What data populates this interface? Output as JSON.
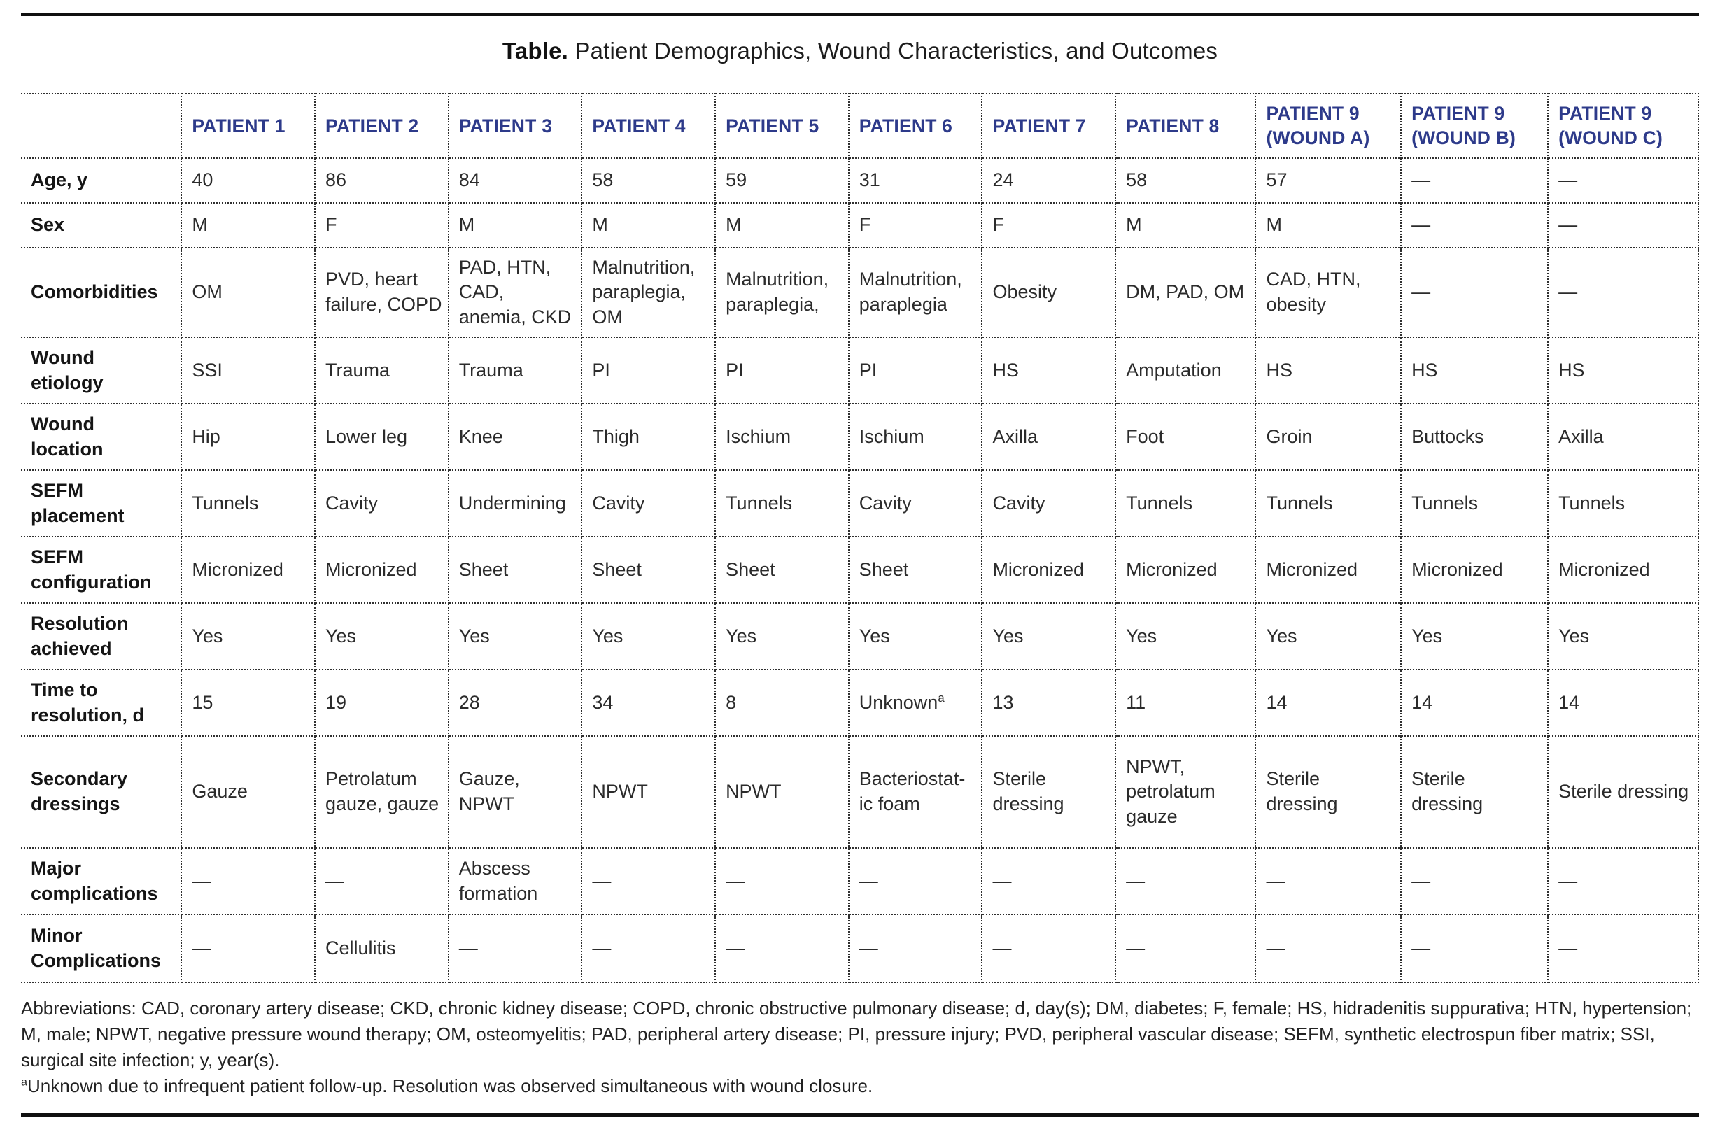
{
  "title": {
    "label": "Table.",
    "text": " Patient Demographics, Wound Characteristics, and Outcomes"
  },
  "table": {
    "header_color": "#2d3a8a",
    "body_text_color": "#2b2b2b",
    "column_headers": [
      "PATIENT 1",
      "PATIENT 2",
      "PATIENT 3",
      "PATIENT 4",
      "PATIENT 5",
      "PATIENT 6",
      "PATIENT 7",
      "PATIENT 8",
      "PATIENT 9\n(WOUND A)",
      "PATIENT 9\n(WOUND B)",
      "PATIENT 9\n(WOUND C)"
    ],
    "rows": [
      {
        "label": "Age, y",
        "values": [
          "40",
          "86",
          "84",
          "58",
          "59",
          "31",
          "24",
          "58",
          "57",
          "—",
          "—"
        ]
      },
      {
        "label": "Sex",
        "values": [
          "M",
          "F",
          "M",
          "M",
          "M",
          "F",
          "F",
          "M",
          "M",
          "—",
          "—"
        ]
      },
      {
        "label": "Comorbidities",
        "values": [
          "OM",
          "PVD, heart failure, COPD",
          "PAD, HTN, CAD, anemia, CKD",
          "Malnutrition, paraplegia, OM",
          "Malnutrition, paraplegia,",
          "Malnutrition, paraplegia",
          "Obesity",
          "DM, PAD, OM",
          "CAD, HTN, obesity",
          "—",
          "—"
        ]
      },
      {
        "label": "Wound\netiology",
        "values": [
          "SSI",
          "Trauma",
          "Trauma",
          "PI",
          "PI",
          "PI",
          "HS",
          "Amputation",
          "HS",
          "HS",
          "HS"
        ]
      },
      {
        "label": "Wound\nlocation",
        "values": [
          "Hip",
          "Lower leg",
          "Knee",
          "Thigh",
          "Ischium",
          "Ischium",
          "Axilla",
          "Foot",
          "Groin",
          "Buttocks",
          "Axilla"
        ]
      },
      {
        "label": "SEFM\nplacement",
        "values": [
          "Tunnels",
          "Cavity",
          "Undermining",
          "Cavity",
          "Tunnels",
          "Cavity",
          "Cavity",
          "Tunnels",
          "Tunnels",
          "Tunnels",
          "Tunnels"
        ]
      },
      {
        "label": "SEFM\nconfiguration",
        "values": [
          "Micronized",
          "Micronized",
          "Sheet",
          "Sheet",
          "Sheet",
          "Sheet",
          "Micronized",
          "Micronized",
          "Micronized",
          "Micronized",
          "Micronized"
        ]
      },
      {
        "label": "Resolution\nachieved",
        "values": [
          "Yes",
          "Yes",
          "Yes",
          "Yes",
          "Yes",
          "Yes",
          "Yes",
          "Yes",
          "Yes",
          "Yes",
          "Yes"
        ]
      },
      {
        "label": "Time to\nresolution, d",
        "values": [
          "15",
          "19",
          "28",
          "34",
          "8",
          "Unknownᵃ",
          "13",
          "11",
          "14",
          "14",
          "14"
        ]
      },
      {
        "label": "Secondary\ndressings",
        "values": [
          "Gauze",
          "Petrolatum gauze, gauze",
          "Gauze, NPWT",
          "NPWT",
          "NPWT",
          "Bacteriostat-\nic foam",
          "Sterile dressing",
          "NPWT, petrolatum gauze",
          "Sterile dressing",
          "Sterile dressing",
          "Sterile dressing"
        ]
      },
      {
        "label": "Major\ncomplications",
        "values": [
          "—",
          "—",
          "Abscess formation",
          "—",
          "—",
          "—",
          "—",
          "—",
          "—",
          "—",
          "—"
        ]
      },
      {
        "label": "Minor\nComplications",
        "values": [
          "—",
          "Cellulitis",
          "—",
          "—",
          "—",
          "—",
          "—",
          "—",
          "—",
          "—",
          "—"
        ]
      }
    ]
  },
  "footnotes": {
    "abbreviations": "Abbreviations: CAD, coronary artery disease; CKD, chronic kidney disease; COPD, chronic obstructive pulmonary disease; d, day(s); DM, diabetes; F, female; HS, hidradenitis suppurativa; HTN, hypertension; M, male; NPWT, negative pressure wound therapy; OM, osteomyelitis; PAD, peripheral artery disease; PI, pressure injury; PVD, peripheral vascular disease; SEFM, synthetic electrospun fiber matrix; SSI, surgical site infection; y, year(s).",
    "note_a_marker": "a",
    "note_a_text": "Unknown due to infrequent patient follow-up. Resolution was observed simultaneous with wound closure."
  }
}
